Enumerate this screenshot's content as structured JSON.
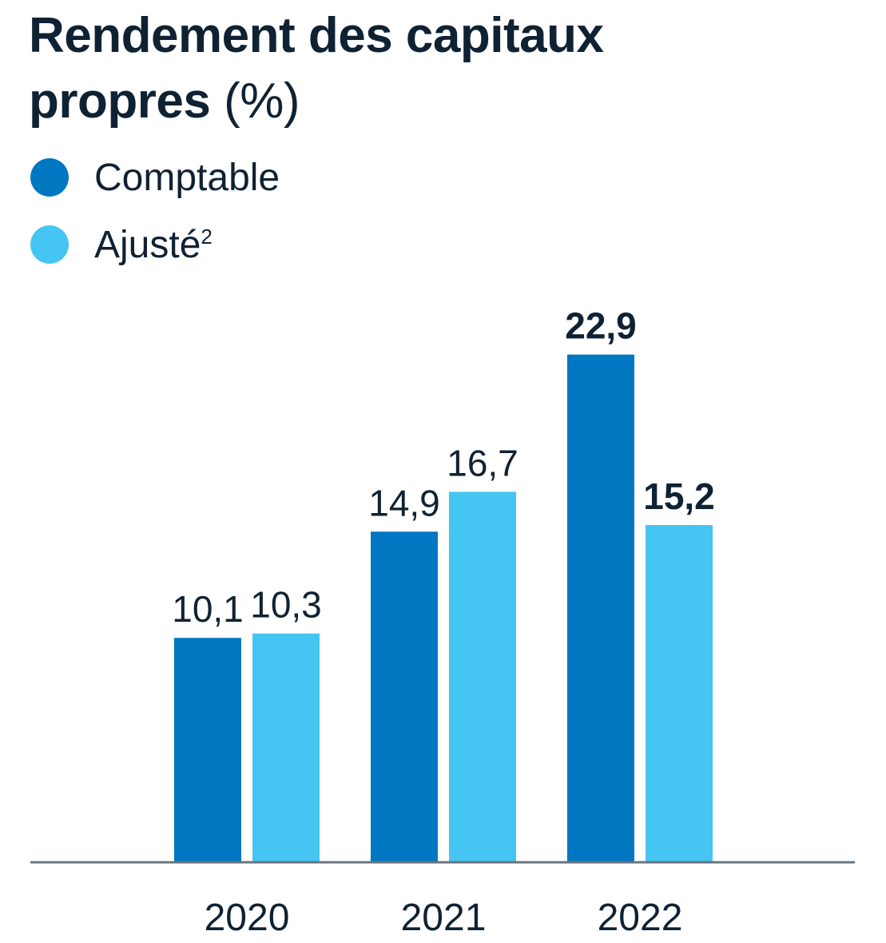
{
  "chart_data": {
    "type": "bar",
    "title": "Rendement des capitaux",
    "title_line2": "propres",
    "title_unit": "(%)",
    "categories": [
      "2020",
      "2021",
      "2022"
    ],
    "series": [
      {
        "name": "Comptable",
        "footnote": "",
        "color": "#0077c0",
        "values": [
          10.1,
          14.9,
          22.9
        ],
        "labels": [
          "10,1",
          "14,9",
          "22,9"
        ],
        "bold_labels": [
          false,
          false,
          true
        ]
      },
      {
        "name": "Ajusté",
        "footnote": "2",
        "color": "#45c5f2",
        "values": [
          10.3,
          16.7,
          15.2
        ],
        "labels": [
          "10,3",
          "16,7",
          "15,2"
        ],
        "bold_labels": [
          false,
          false,
          true
        ]
      }
    ],
    "ylim": [
      0,
      27
    ],
    "grid": false,
    "legend_position": "top-left",
    "axis_color": "#6b7480"
  }
}
